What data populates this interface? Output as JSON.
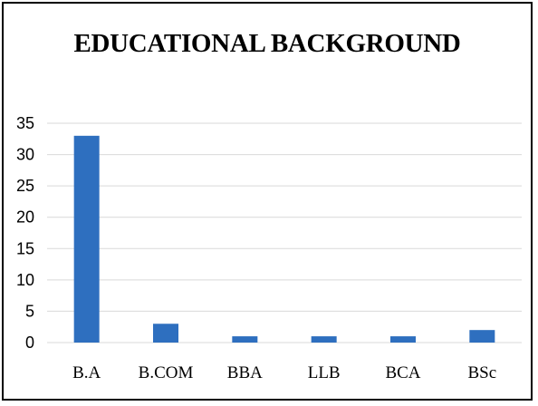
{
  "chart_data": {
    "type": "bar",
    "title": "EDUCATIONAL BACKGROUND",
    "xlabel": "",
    "ylabel": "",
    "categories": [
      "B.A",
      "B.COM",
      "BBA",
      "LLB",
      "BCA",
      "BSc"
    ],
    "values": [
      33,
      3,
      1,
      1,
      1,
      2
    ],
    "ylim": [
      0,
      35
    ],
    "yticks": [
      "0",
      "5",
      "10",
      "15",
      "20",
      "25",
      "30",
      "35"
    ],
    "grid": true,
    "legend": "none",
    "bar_color": "#2e6fbf",
    "grid_color": "#d9d9d9"
  }
}
